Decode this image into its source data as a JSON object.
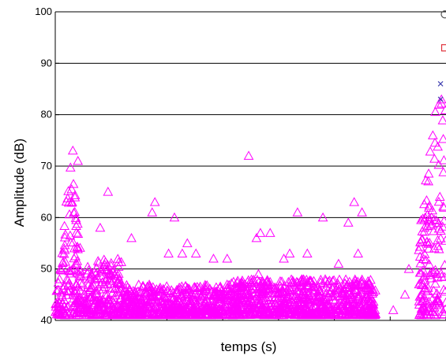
{
  "chart_data": {
    "type": "scatter",
    "title": "",
    "xlabel": "temps (s)",
    "ylabel": "Amplitude (dB)",
    "ylim": [
      40,
      100
    ],
    "yticks": [
      40,
      50,
      60,
      70,
      80,
      90,
      100
    ],
    "grid": "horizontal",
    "x_tick_labels_visible": false,
    "x_extent": [
      0,
      100
    ],
    "legend_markers": [
      "o",
      "square",
      "x"
    ],
    "colors": {
      "triangles": "#ff00ff",
      "square": "#e0303a",
      "x": "#4040b0",
      "circle": "#555555"
    },
    "series": [
      {
        "marker": "triangle",
        "color": "#ff00ff",
        "clusters": [
          {
            "x": [
              0,
              8
            ],
            "y": [
              41,
              73
            ],
            "dense": true
          },
          {
            "x": [
              8,
              17
            ],
            "y": [
              41,
              52
            ],
            "dense": true
          },
          {
            "x": [
              17,
              43
            ],
            "y": [
              41,
              47
            ],
            "dense": true
          },
          {
            "x": [
              43,
              82
            ],
            "y": [
              41,
              48
            ],
            "dense": true
          },
          {
            "x": [
              93,
              100
            ],
            "y": [
              41,
              86
            ],
            "dense": true
          }
        ],
        "outliers": [
          {
            "x": 4.5,
            "y": 73
          },
          {
            "x": 5.8,
            "y": 71
          },
          {
            "x": 13.5,
            "y": 65
          },
          {
            "x": 11.5,
            "y": 58
          },
          {
            "x": 25.5,
            "y": 63
          },
          {
            "x": 24.8,
            "y": 61
          },
          {
            "x": 30.5,
            "y": 60
          },
          {
            "x": 33.8,
            "y": 55
          },
          {
            "x": 36.0,
            "y": 53
          },
          {
            "x": 49.5,
            "y": 72
          },
          {
            "x": 51.5,
            "y": 56
          },
          {
            "x": 52.5,
            "y": 57
          },
          {
            "x": 55.0,
            "y": 57
          },
          {
            "x": 62.0,
            "y": 61
          },
          {
            "x": 68.5,
            "y": 60
          },
          {
            "x": 75.0,
            "y": 59
          },
          {
            "x": 76.5,
            "y": 63
          },
          {
            "x": 78.5,
            "y": 61
          },
          {
            "x": 77.5,
            "y": 53
          },
          {
            "x": 60.0,
            "y": 53
          },
          {
            "x": 64.5,
            "y": 53
          },
          {
            "x": 58.5,
            "y": 52
          },
          {
            "x": 29.0,
            "y": 53
          },
          {
            "x": 32.5,
            "y": 53
          },
          {
            "x": 19.5,
            "y": 56
          },
          {
            "x": 44.0,
            "y": 52
          },
          {
            "x": 40.5,
            "y": 52
          },
          {
            "x": 86.5,
            "y": 42
          },
          {
            "x": 90.5,
            "y": 50
          },
          {
            "x": 89.5,
            "y": 45
          },
          {
            "x": 72.5,
            "y": 51
          },
          {
            "x": 52.0,
            "y": 49
          }
        ]
      },
      {
        "marker": "x",
        "color": "#4040b0",
        "points": [
          {
            "x": 98.6,
            "y": 86
          },
          {
            "x": 98.6,
            "y": 83
          }
        ]
      },
      {
        "marker": "square",
        "color": "#e0303a",
        "points": [
          {
            "x": 99.7,
            "y": 93
          }
        ]
      },
      {
        "marker": "circle",
        "color": "#555555",
        "points": [
          {
            "x": 99.7,
            "y": 99.5
          }
        ]
      }
    ]
  }
}
